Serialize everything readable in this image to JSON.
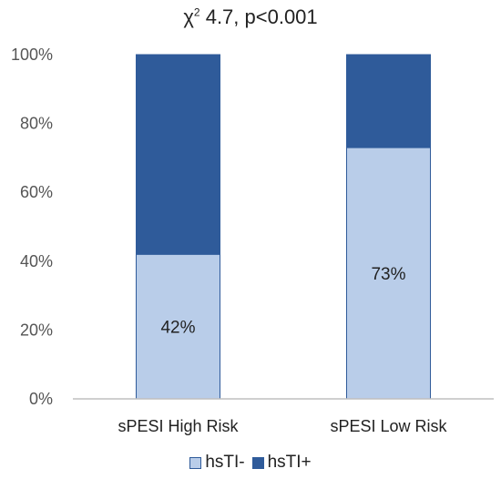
{
  "title": {
    "symbol": "χ",
    "superscript": "2",
    "text": " 4.7, p<0.001"
  },
  "colors": {
    "hsTI_minus": "#b9cde9",
    "hsTI_plus": "#2f5b9a",
    "bar_stroke": "#2f5b9a",
    "axis": "#bfbfbf"
  },
  "chart_data": {
    "type": "bar",
    "stacked": true,
    "categories": [
      "sPESI High Risk",
      "sPESI Low Risk"
    ],
    "series": [
      {
        "name": "hsTI-",
        "values": [
          42,
          73
        ],
        "data_labels": [
          "42%",
          "73%"
        ]
      },
      {
        "name": "hsTI+",
        "values": [
          58,
          27
        ]
      }
    ],
    "ylim": [
      0,
      100
    ],
    "yticks": [
      "0%",
      "20%",
      "40%",
      "60%",
      "80%",
      "100%"
    ],
    "grid": false,
    "legend_position": "bottom"
  }
}
